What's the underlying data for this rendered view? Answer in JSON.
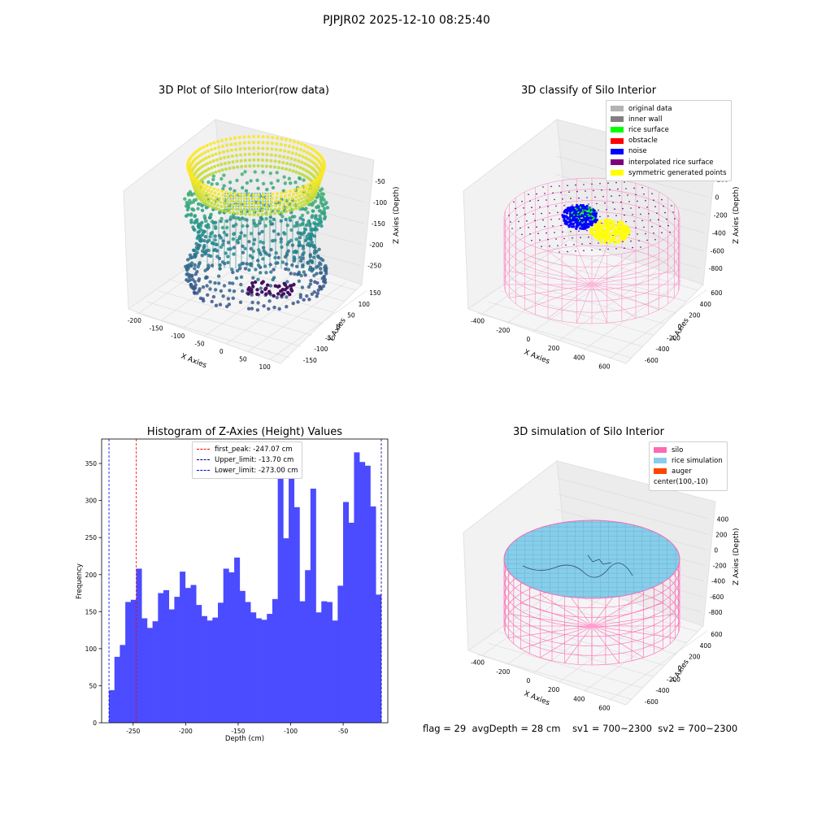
{
  "figure": {
    "title": "PJPJR02 2025-12-10 08:25:40"
  },
  "panels": {
    "raw": {
      "title": "3D Plot of Silo Interior(row data)",
      "xlabel": "X Axies",
      "ylabel": "Y Axies",
      "zlabel": "Z Axies (Depth)",
      "xticks": [
        "-200",
        "-150",
        "-100",
        "-50",
        "0",
        "50",
        "100"
      ],
      "yticks": [
        "-150",
        "-100",
        "-50",
        "0",
        "50",
        "100",
        "150"
      ],
      "zticks": [
        "-50",
        "-100",
        "-150",
        "-200",
        "-250"
      ]
    },
    "classify": {
      "title": "3D classify of Silo Interior",
      "xlabel": "X Axies",
      "ylabel": "Y Axies",
      "zlabel": "Z Axies (Depth)",
      "xticks": [
        "-400",
        "-200",
        "0",
        "200",
        "400",
        "600"
      ],
      "yticks": [
        "-600",
        "-400",
        "-200",
        "0",
        "200",
        "400",
        "600"
      ],
      "zticks": [
        "200",
        "0",
        "-200",
        "-400",
        "-600",
        "-800"
      ],
      "zticks_partial": [
        "00"
      ],
      "legend": [
        {
          "label": "original data",
          "color": "#b3b3b3"
        },
        {
          "label": "inner wall",
          "color": "#808080"
        },
        {
          "label": "rice surface",
          "color": "#00ff00"
        },
        {
          "label": "obstacle",
          "color": "#ff0000"
        },
        {
          "label": "noise",
          "color": "#0000ff"
        },
        {
          "label": "interpolated rice surface",
          "color": "#800080"
        },
        {
          "label": "symmetric generated points",
          "color": "#ffff00"
        }
      ]
    },
    "simulation": {
      "title": "3D simulation of Silo Interior",
      "xlabel": "X Axies",
      "ylabel": "Y Axies",
      "zlabel": "Z Axies (Depth)",
      "xticks": [
        "-400",
        "-200",
        "0",
        "200",
        "400",
        "600"
      ],
      "yticks": [
        "-600",
        "-400",
        "-200",
        "0",
        "200",
        "400",
        "600"
      ],
      "zticks": [
        "400",
        "200",
        "0",
        "-200",
        "-400",
        "-600",
        "-800"
      ],
      "legend": [
        {
          "label": "silo",
          "color": "#ff69b4"
        },
        {
          "label": "rice simulation",
          "color": "#87ceeb"
        },
        {
          "label": "auger",
          "color": "#ff4500"
        },
        {
          "label": "center(100,-10)",
          "color": ""
        }
      ]
    }
  },
  "footer": {
    "flag": "flag = 29",
    "avg": "avgDepth = 28 cm",
    "sv1": "sv1 = 700~2300",
    "sv2": "sv2 = 700~2300"
  },
  "chart_data": {
    "type": "bar",
    "title": "Histogram of Z-Axies (Height) Values",
    "xlabel": "Depth (cm)",
    "ylabel": "Frequency",
    "xlim": [
      -280,
      -7.5
    ],
    "ylim": [
      0,
      383
    ],
    "xticks": [
      -250,
      -200,
      -150,
      -100,
      -50
    ],
    "yticks": [
      0,
      50,
      100,
      150,
      200,
      250,
      300,
      350
    ],
    "bar_color": "#4b4bff",
    "bin_start": -273.0,
    "bin_width": 5.185,
    "values": [
      44,
      89,
      105,
      163,
      166,
      208,
      141,
      128,
      137,
      175,
      179,
      153,
      170,
      204,
      182,
      186,
      159,
      144,
      138,
      142,
      162,
      208,
      203,
      223,
      178,
      163,
      149,
      141,
      139,
      147,
      167,
      331,
      249,
      330,
      291,
      164,
      206,
      316,
      149,
      164,
      163,
      138,
      185,
      298,
      270,
      365,
      352,
      347,
      292,
      173
    ],
    "lines": [
      {
        "label": "first_peak: -247.07 cm",
        "x": -247.07,
        "color": "#ff0000"
      },
      {
        "label": "Upper_limit: -13.70 cm",
        "x": -13.7,
        "color": "#00008b"
      },
      {
        "label": "Lower_limit: -273.00 cm",
        "x": -273.0,
        "color": "#0000ff"
      }
    ],
    "legend_position": "upper center"
  }
}
